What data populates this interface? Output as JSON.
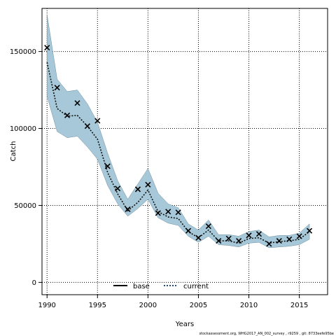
{
  "chart_data": {
    "type": "line",
    "title": "",
    "xlabel": "Years",
    "ylabel": "Catch",
    "xlim": [
      1989.5,
      2017.8
    ],
    "ylim": [
      -8000,
      178000
    ],
    "x_ticks": [
      1990,
      1995,
      2000,
      2005,
      2010,
      2015
    ],
    "y_ticks": [
      0,
      50000,
      100000,
      150000
    ],
    "y_tick_labels": [
      "0",
      "50000",
      "100000",
      "150000"
    ],
    "grid": true,
    "legend_position": "bottom-center",
    "legend": [
      {
        "name": "base",
        "style": "solid",
        "color": "#000000"
      },
      {
        "name": "current",
        "style": "dotted",
        "color": "#1f4e79"
      }
    ],
    "x": [
      1990,
      1991,
      1992,
      1993,
      1994,
      1995,
      1996,
      1997,
      1998,
      1999,
      2000,
      2001,
      2002,
      2003,
      2004,
      2005,
      2006,
      2007,
      2008,
      2009,
      2010,
      2011,
      2012,
      2013,
      2014,
      2015,
      2016
    ],
    "series": [
      {
        "name": "base",
        "kind": "observed",
        "marker": "x",
        "values": [
          152500,
          126500,
          108500,
          116500,
          101500,
          105000,
          75500,
          61000,
          47500,
          60500,
          63500,
          45000,
          46000,
          45500,
          33500,
          29000,
          36500,
          27000,
          28500,
          27000,
          30500,
          31500,
          25000,
          27000,
          28000,
          30000,
          33500
        ]
      },
      {
        "name": "current",
        "kind": "estimate",
        "values": [
          143000,
          113000,
          108000,
          108500,
          101500,
          93000,
          71500,
          57500,
          46500,
          52000,
          60000,
          46000,
          42500,
          41500,
          33000,
          29000,
          34000,
          27000,
          27000,
          25500,
          28500,
          29000,
          25500,
          26500,
          27000,
          28000,
          33000
        ],
        "lower": [
          121000,
          98000,
          94000,
          95000,
          88000,
          80000,
          63000,
          51000,
          43000,
          48000,
          54000,
          42000,
          38500,
          37000,
          30000,
          26000,
          30000,
          24500,
          24000,
          23000,
          25500,
          26000,
          22500,
          23000,
          23500,
          24500,
          28000
        ],
        "upper": [
          174000,
          132000,
          124000,
          125000,
          116000,
          104000,
          84000,
          66000,
          54000,
          64000,
          74000,
          58000,
          51000,
          48500,
          38000,
          34000,
          40500,
          31000,
          31000,
          30000,
          33000,
          34000,
          29500,
          30500,
          30500,
          32000,
          38000
        ]
      }
    ]
  },
  "footnote": "stockassessment.org, WHG2017_AN_002_survey , r9259 , git: 8733eefe95be"
}
